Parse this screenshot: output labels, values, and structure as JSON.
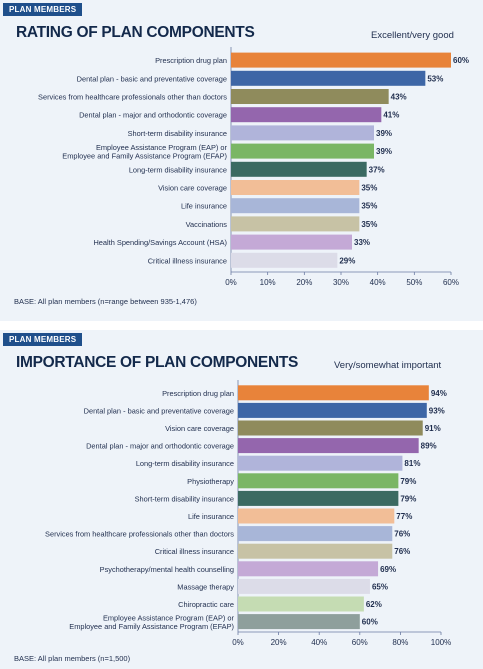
{
  "chart_data": [
    {
      "type": "bar",
      "orientation": "horizontal",
      "tag": "PLAN MEMBERS",
      "title": "RATING OF PLAN COMPONENTS",
      "legend": "Excellent/very good",
      "base_note": "BASE: All plan members (n=range between 935-1,476)",
      "xlim": [
        0,
        60
      ],
      "ticks": [
        "0%",
        "10%",
        "20%",
        "30%",
        "40%",
        "50%",
        "60%"
      ],
      "categories": [
        "Prescription drug plan",
        "Dental plan - basic and preventative coverage",
        "Services from healthcare professionals other than doctors",
        "Dental plan - major and orthodontic coverage",
        "Short-term disability insurance",
        "Employee Assistance Program (EAP) or\nEmployee and Family Assistance Program (EFAP)",
        "Long-term disability insurance",
        "Vision care coverage",
        "Life insurance",
        "Vaccinations",
        "Health Spending/Savings Account (HSA)",
        "Critical illness insurance"
      ],
      "values": [
        60,
        53,
        43,
        41,
        39,
        39,
        37,
        35,
        35,
        35,
        33,
        29
      ],
      "value_labels": [
        "60%",
        "53%",
        "43%",
        "41%",
        "39%",
        "39%",
        "37%",
        "35%",
        "35%",
        "35%",
        "33%",
        "29%"
      ],
      "colors": [
        "#e8833a",
        "#3d66a6",
        "#8f8b5c",
        "#9466ad",
        "#b0b4da",
        "#7ab665",
        "#3b6a62",
        "#f2be97",
        "#a8b6d8",
        "#c7c2a5",
        "#c4a9d6",
        "#dcdce8"
      ]
    },
    {
      "type": "bar",
      "orientation": "horizontal",
      "tag": "PLAN MEMBERS",
      "title": "IMPORTANCE OF PLAN COMPONENTS",
      "legend": "Very/somewhat important",
      "base_note": "BASE: All plan members (n=1,500)",
      "xlim": [
        0,
        100
      ],
      "ticks": [
        "0%",
        "20%",
        "40%",
        "60%",
        "80%",
        "100%"
      ],
      "categories": [
        "Prescription drug plan",
        "Dental plan - basic and preventative coverage",
        "Vision care coverage",
        "Dental plan - major and orthodontic coverage",
        "Long-term disability insurance",
        "Physiotherapy",
        "Short-term disability insurance",
        "Life insurance",
        "Services from healthcare professionals other than doctors",
        "Critical illness insurance",
        "Psychotherapy/mental health counselling",
        "Massage therapy",
        "Chiropractic care",
        "Employee Assistance Program (EAP) or\nEmployee and Family Assistance Program (EFAP)"
      ],
      "values": [
        94,
        93,
        91,
        89,
        81,
        79,
        79,
        77,
        76,
        76,
        69,
        65,
        62,
        60
      ],
      "value_labels": [
        "94%",
        "93%",
        "91%",
        "89%",
        "81%",
        "79%",
        "79%",
        "77%",
        "76%",
        "76%",
        "69%",
        "65%",
        "62%",
        "60%"
      ],
      "colors": [
        "#e8833a",
        "#3d66a6",
        "#8f8b5c",
        "#9466ad",
        "#b0b4da",
        "#7ab665",
        "#3b6a62",
        "#f2be97",
        "#a8b6d8",
        "#c7c2a5",
        "#c4a9d6",
        "#dcdce8",
        "#c5dcb3",
        "#8e9f9c"
      ]
    }
  ]
}
